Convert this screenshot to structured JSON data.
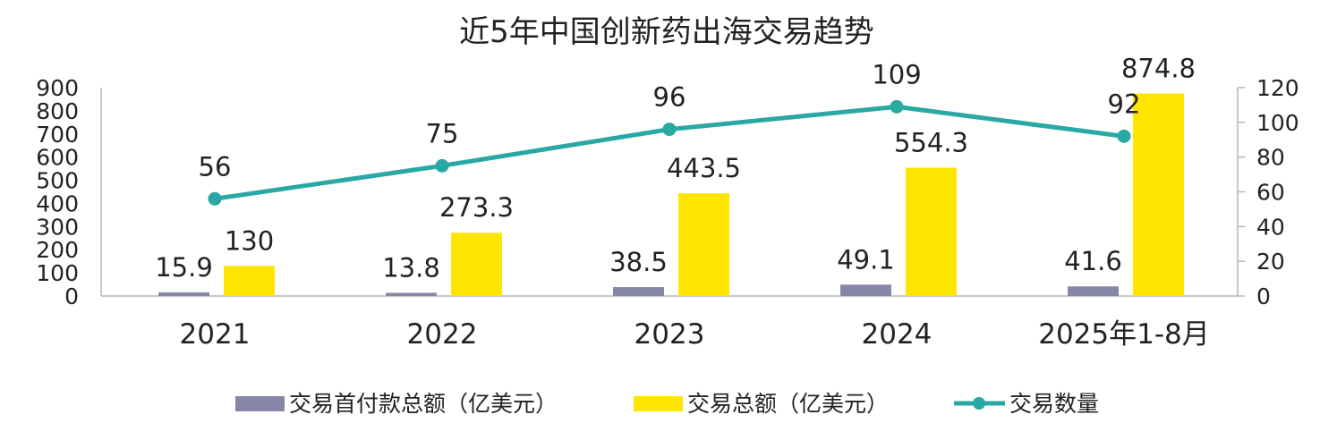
{
  "chart_data": {
    "type": "bar",
    "title": "近5年中国创新药出海交易趋势",
    "categories": [
      "2021",
      "2022",
      "2023",
      "2024",
      "2025年1-8月"
    ],
    "series": [
      {
        "name": "交易首付款总额（亿美元）",
        "type": "bar",
        "axis": "left",
        "color": "#8686a8",
        "values": [
          15.9,
          13.8,
          38.5,
          49.1,
          41.6
        ]
      },
      {
        "name": "交易总额（亿美元）",
        "type": "bar",
        "axis": "left",
        "color": "#ffe600",
        "values": [
          130,
          273.3,
          443.5,
          554.3,
          874.8
        ]
      },
      {
        "name": "交易数量",
        "type": "line",
        "axis": "right",
        "color": "#2aa8a3",
        "values": [
          56,
          75,
          96,
          109,
          92
        ]
      }
    ],
    "ylim_left": [
      0,
      900
    ],
    "yticks_left": [
      0,
      100,
      200,
      300,
      400,
      500,
      600,
      700,
      800,
      900
    ],
    "ylim_right": [
      0,
      120
    ],
    "yticks_right": [
      0,
      20,
      40,
      60,
      80,
      100,
      120
    ],
    "grid": false,
    "legend_position": "bottom"
  }
}
